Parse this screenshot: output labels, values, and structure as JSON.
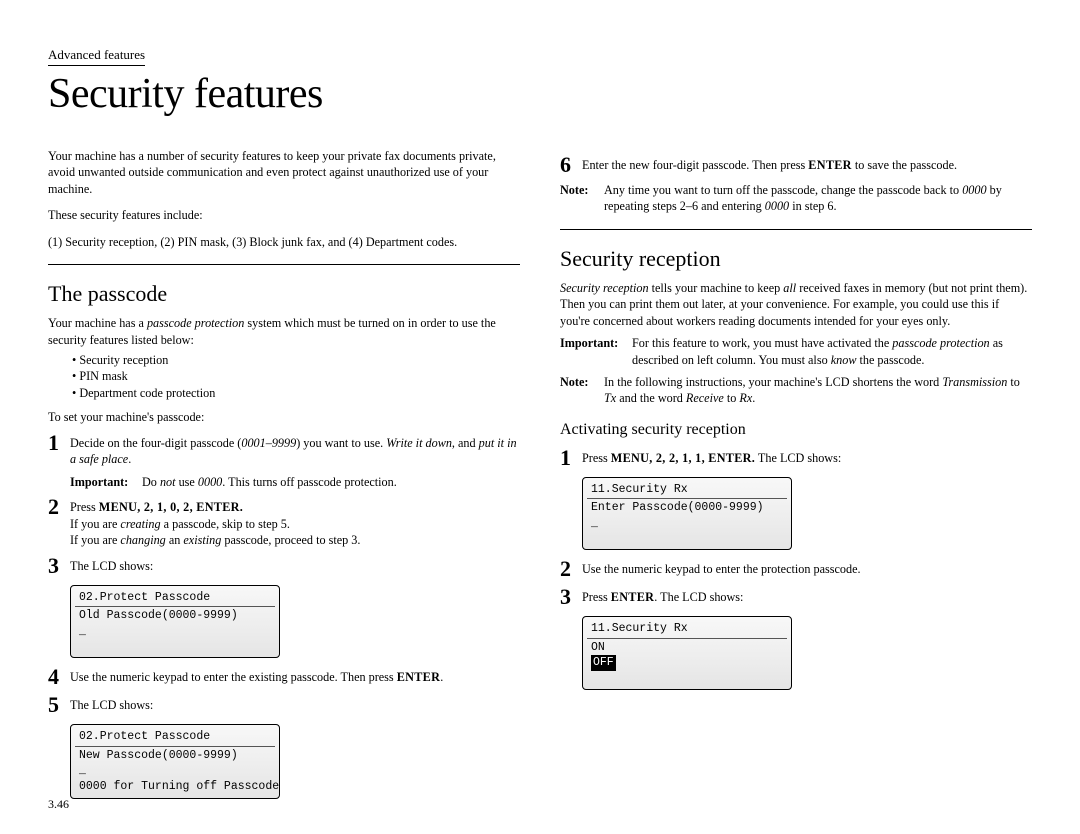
{
  "header": {
    "section_label": "Advanced features"
  },
  "title": "Security features",
  "page_number": "3.46",
  "left": {
    "intro": "Your machine has a number of security features to keep your private fax documents private, avoid unwanted outside communication and even protect against unauthorized use of your machine.",
    "features_intro": "These security features include:",
    "features_line_prefix": "(1) Security reception, (2) ",
    "features_line_pin": "PIN",
    "features_line_suffix": " mask, (3) Block junk fax, and (4) Department codes.",
    "passcode": {
      "title": "The passcode",
      "intro_a": "Your machine has a ",
      "intro_b_italic": "passcode protection",
      "intro_c": " system which must be turned on in order to use the security features listed below:",
      "bullets": [
        "Security reception",
        "PIN mask",
        "Department code protection"
      ],
      "toset": "To set your machine's passcode:",
      "steps": {
        "1": {
          "a": "Decide on the four-digit passcode (",
          "b_italic": "0001–9999",
          "c": ") you want to use. ",
          "d_italic": "Write it down",
          "e": ", and ",
          "f_italic": "put it in a safe place",
          "g": "."
        },
        "1_important_label": "Important:",
        "1_important_a": "Do ",
        "1_important_b_italic": "not",
        "1_important_c": " use ",
        "1_important_d_italic": "0000",
        "1_important_e": ". This turns off passcode protection.",
        "2": {
          "a": "Press ",
          "b_bold": "MENU, 2, 1, 0, 2, ENTER.",
          "line2_a": "If you are ",
          "line2_b_italic": "creating",
          "line2_c": " a passcode, skip to step 5.",
          "line3_a": "If you are ",
          "line3_b_italic": "changing",
          "line3_c": " an ",
          "line3_d_italic": "existing",
          "line3_e": " passcode, proceed to step 3."
        },
        "3": {
          "a": "The ",
          "b_sc": "LCD",
          "c": " shows:"
        },
        "lcd1": {
          "title": "02.Protect Passcode",
          "line1": "Old Passcode(0000-9999)",
          "line2": "_"
        },
        "4": {
          "a": "Use the numeric keypad to enter the existing passcode. Then press ",
          "b_bold": "ENTER",
          "c": "."
        },
        "5": {
          "a": "The ",
          "b_sc": "LCD",
          "c": " shows:"
        },
        "lcd2": {
          "title": "02.Protect Passcode",
          "line1": "New Passcode(0000-9999)",
          "line2": "_",
          "line3": "0000 for Turning off Passcode"
        }
      }
    }
  },
  "right": {
    "step6": {
      "a": "Enter the new four-digit passcode. Then press ",
      "b_bold": "ENTER",
      "c": " to save the passcode."
    },
    "note1": {
      "label": "Note:",
      "a": "Any time you want to turn off the passcode, change the passcode back to ",
      "b_italic": "0000",
      "c": " by repeating steps 2–6 and entering ",
      "d_italic": "0000",
      "e": " in step 6."
    },
    "security": {
      "title": "Security reception",
      "intro_a": "",
      "intro_b_italic": "Security reception",
      "intro_c": " tells your machine to keep ",
      "intro_d_italic": "all",
      "intro_e": " received faxes in memory (but not print them). Then you can print them out later, at your convenience. For example, you could use this if you're concerned about workers reading documents intended for your eyes only.",
      "important": {
        "label": "Important:",
        "a": "For this feature to work, you must have activated the ",
        "b_italic": "passcode protection",
        "c": " as described on left column. You must also ",
        "d_italic": "know",
        "e": " the passcode."
      },
      "note": {
        "label": "Note:",
        "a": "In the following instructions, your machine's ",
        "b_sc": "LCD",
        "c": " shortens the word ",
        "d_italic": "Transmission",
        "e": " to ",
        "f_italic": "Tx",
        "g": " and the word ",
        "h_italic": "Receive",
        "i": " to ",
        "j_italic": "Rx",
        "k": "."
      },
      "subtitle": "Activating security reception",
      "steps": {
        "1": {
          "a": "Press ",
          "b_bold": "MENU, 2, 2, 1, 1, ENTER.",
          "c": " The ",
          "d_sc": "LCD",
          "e": " shows:"
        },
        "lcd1": {
          "title": "11.Security Rx",
          "line1": "Enter Passcode(0000-9999)",
          "line2": "_"
        },
        "2": {
          "a": "Use the numeric keypad to enter the protection passcode."
        },
        "3": {
          "a": "Press ",
          "b_bold": "ENTER",
          "c": ". The ",
          "d_sc": "LCD",
          "e": " shows:"
        },
        "lcd2": {
          "title": "11.Security Rx",
          "line1": "ON",
          "line2_highlight": "OFF"
        }
      }
    }
  }
}
